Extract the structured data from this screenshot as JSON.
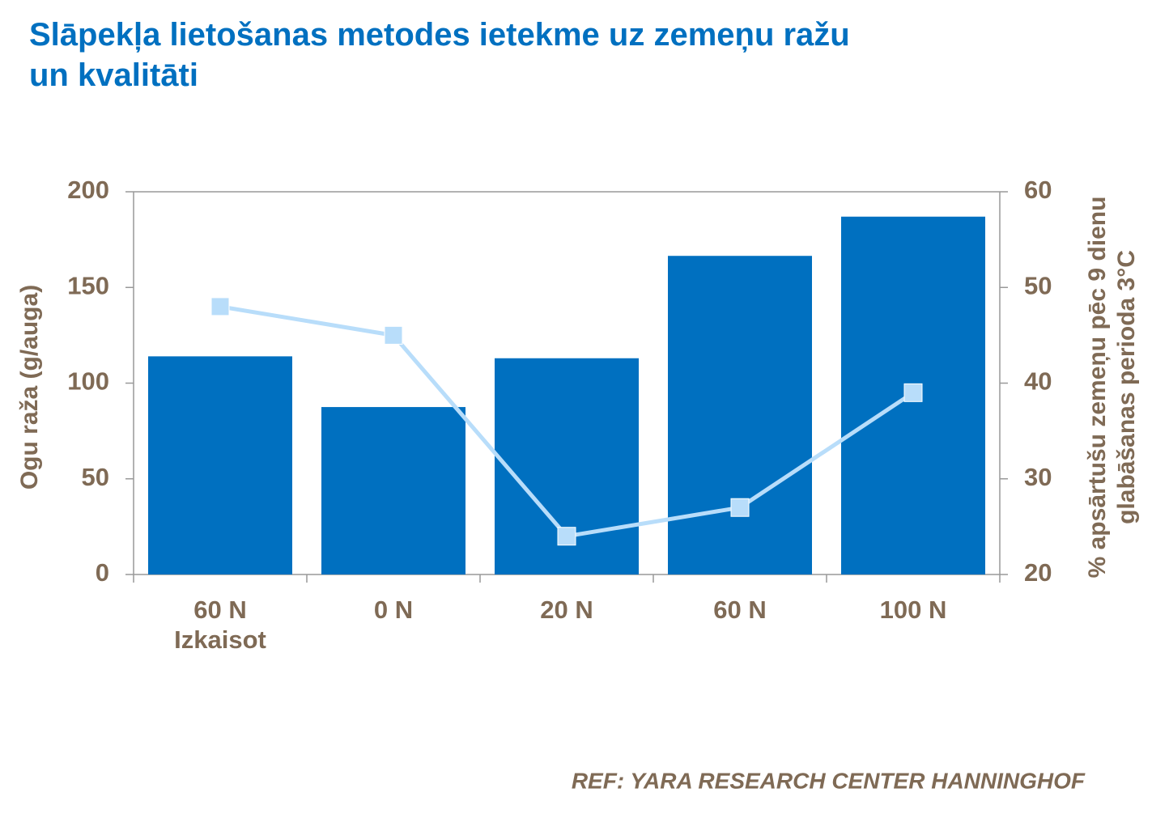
{
  "chart_data": {
    "type": "bar_line",
    "title": "Slāpekļa lietošanas metodes ietekme uz zemeņu ražu\nun kvalitāti",
    "categories": [
      "60 N\nIzkaisot",
      "0 N",
      "20 N",
      "60 N",
      "100 N"
    ],
    "ylabel": "Ogu raža (g/auga)",
    "y2label": "% apsārtušu zemeņu pēc 9 dienu\nglabāšanas perioda 3°C",
    "series": [
      {
        "type": "bar",
        "color": "#0070c0",
        "values": [
          114,
          87.5,
          113,
          166.5,
          187
        ]
      },
      {
        "type": "line",
        "axis": "y2",
        "color": "#b8ddfa",
        "values": [
          48,
          45,
          24,
          27,
          39
        ]
      }
    ],
    "ylim": [
      0,
      200
    ],
    "yticks": [
      0,
      50,
      100,
      150,
      200
    ],
    "y2lim": [
      20,
      60
    ],
    "y2ticks": [
      20,
      30,
      40,
      50,
      60
    ],
    "note": "REF:  YARA RESEARCH CENTER HANNINGHOF"
  }
}
